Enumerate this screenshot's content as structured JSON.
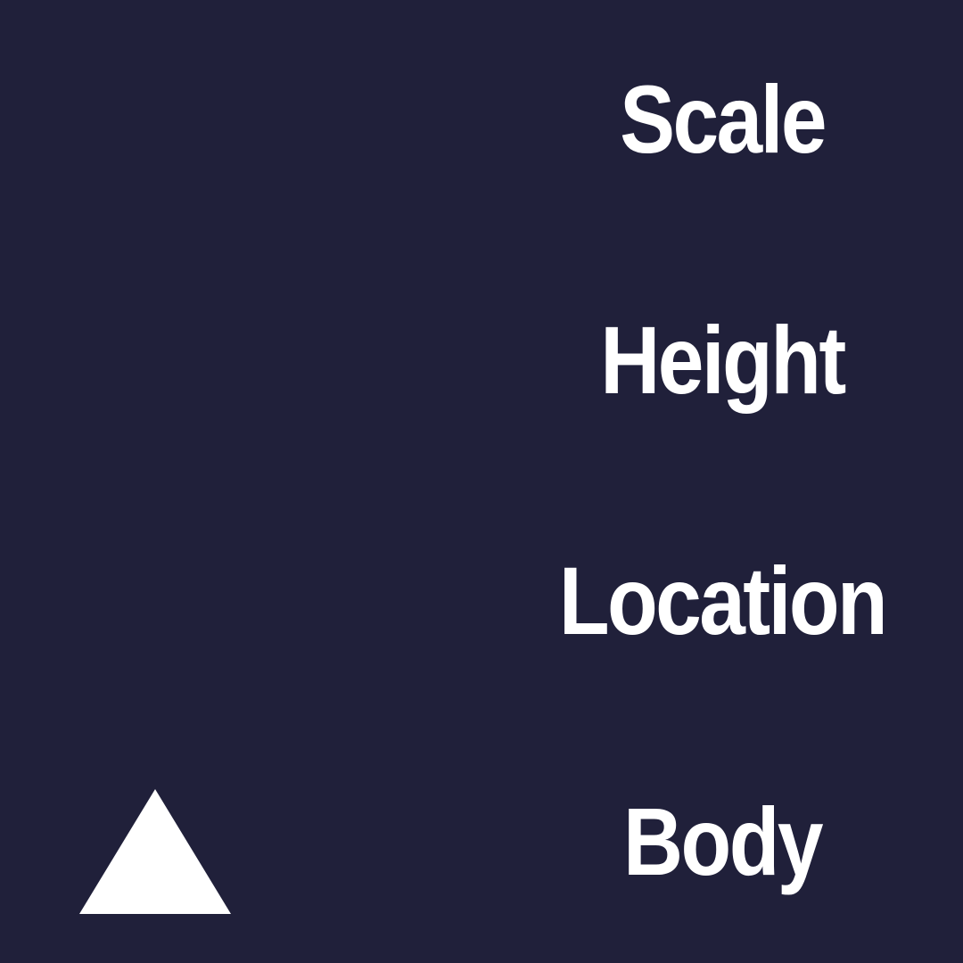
{
  "labels": [
    {
      "text": "Scale"
    },
    {
      "text": "Height"
    },
    {
      "text": "Location"
    },
    {
      "text": "Body"
    }
  ],
  "shape": {
    "icon": "triangle-up-icon",
    "color": "#ffffff"
  },
  "colors": {
    "background": "#20203a",
    "text": "#ffffff"
  }
}
